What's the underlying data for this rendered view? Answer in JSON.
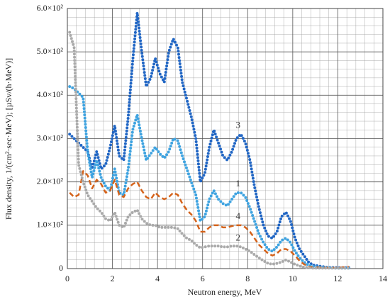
{
  "chart_data": {
    "type": "line",
    "xlabel": "Neutron energy, MeV",
    "ylabel": "Flux density, 1/(cm²·sec·MeV); [µSv/(h·MeV)]",
    "x": [
      0.1,
      0.3,
      0.5,
      0.7,
      0.9,
      1.1,
      1.3,
      1.5,
      1.7,
      1.9,
      2.1,
      2.3,
      2.5,
      2.7,
      2.9,
      3.1,
      3.3,
      3.5,
      3.7,
      3.9,
      4.1,
      4.3,
      4.5,
      4.7,
      4.9,
      5.1,
      5.3,
      5.5,
      5.7,
      5.9,
      6.1,
      6.3,
      6.5,
      6.7,
      6.9,
      7.1,
      7.3,
      7.5,
      7.7,
      7.9,
      8.1,
      8.3,
      8.5,
      8.7,
      8.9,
      9.1,
      9.3,
      9.5,
      9.7,
      9.9,
      10.1,
      10.3,
      10.5,
      10.7,
      10.9,
      11.5,
      12.0,
      12.5
    ],
    "series": [
      {
        "name": "3",
        "color": "#2166c4",
        "style": "dotted",
        "values": [
          310,
          300,
          290,
          280,
          270,
          230,
          270,
          230,
          240,
          280,
          330,
          260,
          250,
          350,
          480,
          590,
          500,
          420,
          440,
          485,
          450,
          430,
          500,
          530,
          510,
          430,
          390,
          350,
          300,
          200,
          220,
          280,
          320,
          290,
          260,
          250,
          270,
          300,
          310,
          290,
          250,
          190,
          140,
          100,
          75,
          70,
          85,
          120,
          130,
          110,
          70,
          45,
          30,
          15,
          8,
          3,
          2,
          2
        ]
      },
      {
        "name": "1",
        "color": "#3fa3e0",
        "style": "dotted",
        "values": [
          420,
          415,
          405,
          395,
          270,
          210,
          250,
          210,
          190,
          180,
          230,
          175,
          170,
          230,
          320,
          355,
          300,
          250,
          265,
          280,
          265,
          255,
          270,
          300,
          295,
          260,
          230,
          200,
          170,
          110,
          120,
          160,
          180,
          160,
          150,
          145,
          160,
          175,
          175,
          165,
          140,
          110,
          80,
          60,
          45,
          40,
          50,
          65,
          70,
          60,
          40,
          25,
          15,
          8,
          5,
          2,
          1,
          1
        ]
      },
      {
        "name": "4",
        "color": "#d4621a",
        "style": "dashed",
        "values": [
          175,
          165,
          170,
          225,
          215,
          185,
          205,
          195,
          175,
          180,
          205,
          170,
          165,
          185,
          195,
          200,
          180,
          165,
          160,
          175,
          165,
          160,
          165,
          175,
          170,
          150,
          135,
          125,
          110,
          85,
          85,
          95,
          100,
          100,
          95,
          95,
          98,
          100,
          100,
          95,
          85,
          70,
          55,
          45,
          35,
          30,
          35,
          45,
          45,
          40,
          30,
          18,
          10,
          5,
          3,
          2,
          2,
          4
        ]
      },
      {
        "name": "2",
        "color": "#aaaaaa",
        "style": "dotted",
        "values": [
          545,
          510,
          240,
          200,
          170,
          155,
          140,
          130,
          115,
          110,
          130,
          100,
          95,
          120,
          130,
          135,
          115,
          105,
          100,
          100,
          95,
          95,
          95,
          95,
          92,
          80,
          70,
          65,
          55,
          48,
          50,
          52,
          52,
          52,
          50,
          50,
          52,
          52,
          50,
          45,
          40,
          32,
          25,
          18,
          12,
          10,
          12,
          15,
          20,
          15,
          10,
          6,
          3,
          2,
          1,
          1,
          1,
          1
        ]
      }
    ],
    "xlim": [
      0,
      14
    ],
    "xticks": [
      0,
      2,
      4,
      6,
      8,
      10,
      12,
      14
    ],
    "ylim": [
      0,
      600
    ],
    "yticks": [
      0,
      {
        "value": 100,
        "label": "1.0×10²"
      },
      {
        "value": 200,
        "label": "2.0×10²"
      },
      {
        "value": 300,
        "label": "3.0×10²"
      },
      {
        "value": 400,
        "label": "4.0×10²"
      },
      {
        "value": 500,
        "label": "5.0×10²"
      },
      {
        "value": 600,
        "label": "6.0×10²"
      }
    ],
    "grid": true,
    "minor_grid": true
  }
}
